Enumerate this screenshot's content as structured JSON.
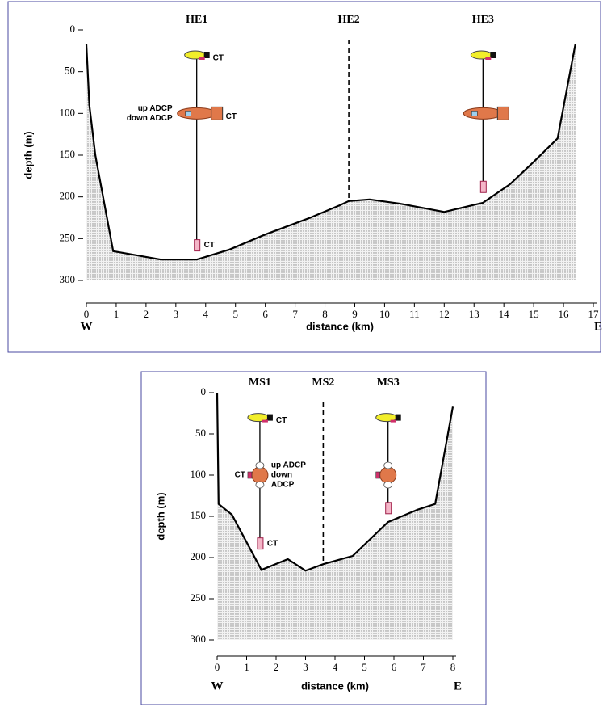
{
  "chart_data": [
    {
      "type": "area",
      "color": "#000000",
      "x": [
        0,
        0.1,
        0.3,
        0.9,
        2.5,
        3.7,
        4.8,
        6,
        7.5,
        8.5,
        8.8,
        9.5,
        10.5,
        12,
        13.3,
        14.2,
        15,
        15.8,
        16.4
      ],
      "values": [
        17,
        90,
        150,
        265,
        275,
        275,
        263,
        245,
        225,
        210,
        205,
        203,
        208,
        218,
        207,
        185,
        158,
        130,
        17
      ],
      "xlim": [
        0,
        17
      ],
      "ylim": [
        0,
        300
      ],
      "y_inverted": true,
      "xticks": [
        0,
        1,
        2,
        3,
        4,
        5,
        6,
        7,
        8,
        9,
        10,
        11,
        12,
        13,
        14,
        15,
        16,
        17
      ],
      "yticks": [
        0,
        50,
        100,
        150,
        200,
        250,
        300
      ],
      "xlabel": "distance  (km)",
      "ylabel": "depth  (m)",
      "x_start_label": "W",
      "x_end_label": "E",
      "moorings": [
        {
          "label": "HE1",
          "x": 3.7,
          "dashed": false,
          "instruments": [
            {
              "kind": "float",
              "depth": 30,
              "labels_right": [
                "CT"
              ]
            },
            {
              "kind": "adcp",
              "depth": 100,
              "labels_left": [
                "up ADCP",
                "down ADCP"
              ],
              "labels_right": [
                "CT"
              ]
            },
            {
              "kind": "ct",
              "depth": 258,
              "labels_right": [
                "CT"
              ]
            }
          ]
        },
        {
          "label": "HE2",
          "x": 8.8,
          "dashed": true,
          "instruments": []
        },
        {
          "label": "HE3",
          "x": 13.3,
          "dashed": false,
          "instruments": [
            {
              "kind": "float",
              "depth": 30
            },
            {
              "kind": "adcp",
              "depth": 100
            },
            {
              "kind": "ct",
              "depth": 188
            }
          ]
        }
      ]
    },
    {
      "type": "area",
      "color": "#000000",
      "x": [
        0,
        0.05,
        0.5,
        1.5,
        2.4,
        3.0,
        3.6,
        4.6,
        5.8,
        6.8,
        7.4,
        8
      ],
      "values": [
        0,
        135,
        148,
        215,
        202,
        216,
        208,
        198,
        157,
        142,
        135,
        17
      ],
      "xlim": [
        0,
        8
      ],
      "ylim": [
        0,
        300
      ],
      "y_inverted": true,
      "xticks": [
        0,
        1,
        2,
        3,
        4,
        5,
        6,
        7,
        8
      ],
      "yticks": [
        0,
        50,
        100,
        150,
        200,
        250,
        300
      ],
      "xlabel": "distance  (km)",
      "ylabel": "depth  (m)",
      "x_start_label": "W",
      "x_end_label": "E",
      "moorings": [
        {
          "label": "MS1",
          "x": 1.45,
          "dashed": false,
          "instruments": [
            {
              "kind": "float",
              "depth": 30,
              "labels_right": [
                "CT"
              ]
            },
            {
              "kind": "sphere",
              "depth": 100,
              "labels_left": [
                "CT"
              ],
              "labels_right": [
                "up ADCP",
                "down",
                "ADCP"
              ]
            },
            {
              "kind": "ct",
              "depth": 183,
              "labels_right": [
                "CT"
              ]
            }
          ]
        },
        {
          "label": "MS2",
          "x": 3.6,
          "dashed": true,
          "instruments": []
        },
        {
          "label": "MS3",
          "x": 5.8,
          "dashed": false,
          "instruments": [
            {
              "kind": "float",
              "depth": 30
            },
            {
              "kind": "sphere",
              "depth": 100
            },
            {
              "kind": "ct",
              "depth": 140
            }
          ]
        }
      ]
    }
  ]
}
